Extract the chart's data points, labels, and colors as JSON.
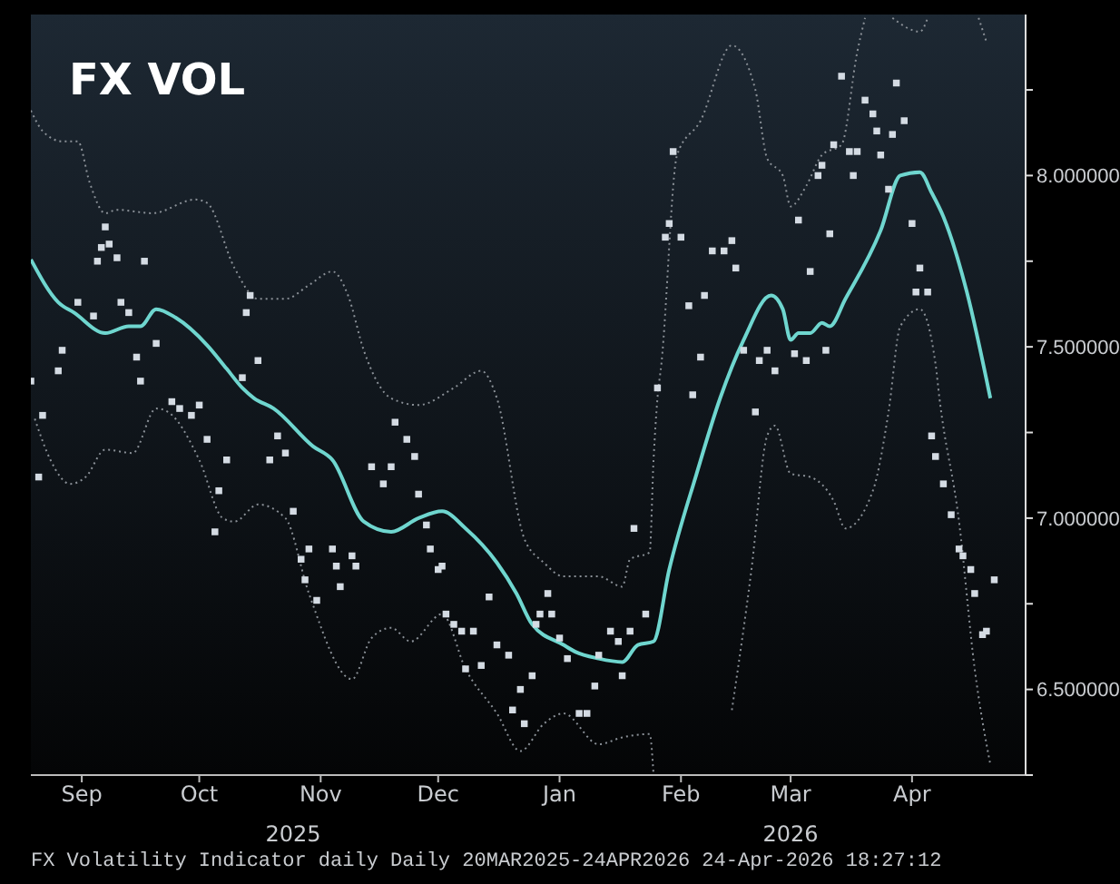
{
  "chart_data": {
    "type": "line",
    "title": "FX VOL",
    "annotations": [
      "FX Volatility Indicator daily Daily 20MAR2025-24APR2026 24-Apr-2026 18:27:12"
    ],
    "xlim": [
      "2025-08-19",
      "2026-04-30"
    ],
    "xticks": [
      {
        "value": "2025-09-01",
        "label": "Sep"
      },
      {
        "value": "2025-10-01",
        "label": "Oct"
      },
      {
        "value": "2025-11-01",
        "label": "Nov"
      },
      {
        "value": "2025-12-01",
        "label": "Dec"
      },
      {
        "value": "2026-01-01",
        "label": "Jan"
      },
      {
        "value": "2026-02-01",
        "label": "Feb"
      },
      {
        "value": "2026-03-01",
        "label": "Mar"
      },
      {
        "value": "2026-04-01",
        "label": "Apr"
      }
    ],
    "x2lim": [
      "2025-08-19",
      "2026-04-30"
    ],
    "x2ticks": [
      {
        "value": "2025-10-25",
        "label": "2025"
      },
      {
        "value": "2026-03-01",
        "label": "2026"
      }
    ],
    "ylim": [
      6.25,
      8.47
    ],
    "yticks": [
      {
        "value": 6.25,
        "label": null
      },
      {
        "value": 6.5,
        "label": "6.500000"
      },
      {
        "value": 6.75,
        "label": null
      },
      {
        "value": 7,
        "label": "7.000000"
      },
      {
        "value": 7.25,
        "label": null
      },
      {
        "value": 7.5,
        "label": "7.500000"
      },
      {
        "value": 7.75,
        "label": null
      },
      {
        "value": 8,
        "label": "8.000000"
      },
      {
        "value": 8.25,
        "label": null
      }
    ],
    "series": [
      {
        "color": "#8a9097",
        "line_style": "dotted",
        "x": [
          "2025-08-19",
          "2025-08-22",
          "2025-08-27",
          "2025-08-31",
          "2025-09-03",
          "2025-09-07",
          "2025-09-10",
          "2025-09-19",
          "2025-09-30",
          "2025-10-03",
          "2025-10-10",
          "2025-10-16",
          "2025-10-23",
          "2025-10-29",
          "2025-11-04",
          "2025-11-08",
          "2025-11-12",
          "2025-11-19",
          "2025-11-26",
          "2025-12-05",
          "2025-12-12",
          "2025-12-16",
          "2025-12-23",
          "2025-12-28",
          "2026-01-02",
          "2026-01-11",
          "2026-01-17",
          "2026-01-19",
          "2026-01-24",
          "2026-01-25",
          "2026-01-26",
          "2026-01-27",
          "2026-01-31",
          "2026-02-06",
          "2026-02-14",
          "2026-02-20",
          "2026-02-23",
          "2026-02-27",
          "2026-03-01",
          "2026-03-05",
          "2026-03-09",
          "2026-03-14",
          "2026-03-18",
          "2026-03-20",
          "2026-03-25",
          "2026-03-27",
          "2026-04-03",
          "2026-04-05",
          "2026-04-12",
          "2026-04-18",
          "2026-04-20"
        ],
        "values": [
          8.19,
          8.13,
          8.1,
          8.1,
          7.98,
          7.89,
          7.9,
          7.89,
          7.93,
          7.92,
          7.73,
          7.64,
          7.64,
          7.68,
          7.72,
          7.65,
          7.49,
          7.35,
          7.33,
          7.38,
          7.43,
          7.35,
          6.94,
          6.87,
          6.83,
          6.83,
          6.8,
          6.88,
          6.9,
          7.17,
          7.35,
          7.45,
          8.06,
          8.16,
          8.38,
          8.25,
          8.05,
          8.0,
          7.91,
          7.97,
          8.06,
          8.09,
          8.36,
          8.46,
          null,
          8.46,
          8.42,
          8.46,
          null,
          8.46,
          8.39
        ]
      },
      {
        "color": "#8a9097",
        "line_style": "dotted",
        "x": [
          "2025-08-20",
          "2025-08-24",
          "2025-08-29",
          "2025-09-02",
          "2025-09-07",
          "2025-09-14",
          "2025-09-20",
          "2025-09-23",
          "2025-10-01",
          "2025-10-07",
          "2025-10-10",
          "2025-10-16",
          "2025-10-23",
          "2025-10-29",
          "2025-11-09",
          "2025-11-14",
          "2025-11-19",
          "2025-11-24",
          "2025-12-02",
          "2025-12-08",
          "2025-12-16",
          "2025-12-22",
          "2025-12-28",
          "2026-01-02",
          "2026-01-11",
          "2026-01-17",
          "2026-01-24",
          "2026-01-25",
          "2026-02-01",
          "2026-02-10",
          "2026-02-14",
          "2026-02-19",
          "2026-02-23",
          "2026-02-25",
          "2026-03-01",
          "2026-03-06",
          "2026-03-12",
          "2026-03-15",
          "2026-03-22",
          "2026-03-26",
          "2026-03-29",
          "2026-04-03",
          "2026-04-07",
          "2026-04-08",
          "2026-04-13",
          "2026-04-17",
          "2026-04-21"
        ],
        "values": [
          7.29,
          7.17,
          7.1,
          7.12,
          7.2,
          7.19,
          7.32,
          7.31,
          7.17,
          7.0,
          6.99,
          7.04,
          7.0,
          6.78,
          6.53,
          6.65,
          6.68,
          6.64,
          6.72,
          6.56,
          6.43,
          6.32,
          6.4,
          6.43,
          6.34,
          6.36,
          6.37,
          6.25,
          null,
          null,
          6.44,
          6.85,
          7.24,
          7.27,
          7.13,
          7.12,
          7.05,
          6.97,
          7.08,
          7.31,
          7.56,
          7.61,
          7.45,
          7.35,
          6.99,
          6.56,
          6.28
        ]
      },
      {
        "type": "scatter",
        "color": "#d4dbe3",
        "marker": "square",
        "x": [
          "2025-08-19",
          "2025-08-21",
          "2025-08-22",
          "2025-08-26",
          "2025-08-27",
          "2025-08-31",
          "2025-09-04",
          "2025-09-05",
          "2025-09-06",
          "2025-09-07",
          "2025-09-08",
          "2025-09-10",
          "2025-09-11",
          "2025-09-13",
          "2025-09-15",
          "2025-09-16",
          "2025-09-17",
          "2025-09-20",
          "2025-09-24",
          "2025-09-26",
          "2025-09-29",
          "2025-10-01",
          "2025-10-03",
          "2025-10-05",
          "2025-10-06",
          "2025-10-08",
          "2025-10-12",
          "2025-10-13",
          "2025-10-14",
          "2025-10-16",
          "2025-10-19",
          "2025-10-21",
          "2025-10-23",
          "2025-10-25",
          "2025-10-27",
          "2025-10-28",
          "2025-10-29",
          "2025-10-31",
          "2025-11-04",
          "2025-11-05",
          "2025-11-06",
          "2025-11-09",
          "2025-11-10",
          "2025-11-14",
          "2025-11-17",
          "2025-11-19",
          "2025-11-20",
          "2025-11-23",
          "2025-11-25",
          "2025-11-26",
          "2025-11-28",
          "2025-11-29",
          "2025-12-01",
          "2025-12-02",
          "2025-12-03",
          "2025-12-05",
          "2025-12-07",
          "2025-12-08",
          "2025-12-10",
          "2025-12-12",
          "2025-12-14",
          "2025-12-16",
          "2025-12-19",
          "2025-12-20",
          "2025-12-22",
          "2025-12-23",
          "2025-12-25",
          "2025-12-26",
          "2025-12-27",
          "2025-12-29",
          "2025-12-30",
          "2026-01-01",
          "2026-01-03",
          "2026-01-06",
          "2026-01-08",
          "2026-01-10",
          "2026-01-11",
          "2026-01-14",
          "2026-01-16",
          "2026-01-17",
          "2026-01-19",
          "2026-01-20",
          "2026-01-23",
          "2026-01-26",
          "2026-01-28",
          "2026-01-29",
          "2026-01-30",
          "2026-02-01",
          "2026-02-03",
          "2026-02-04",
          "2026-02-06",
          "2026-02-07",
          "2026-02-09",
          "2026-02-12",
          "2026-02-14",
          "2026-02-15",
          "2026-02-17",
          "2026-02-20",
          "2026-02-21",
          "2026-02-23",
          "2026-02-25",
          "2026-03-02",
          "2026-03-03",
          "2026-03-05",
          "2026-03-06",
          "2026-03-08",
          "2026-03-09",
          "2026-03-10",
          "2026-03-11",
          "2026-03-12",
          "2026-03-14",
          "2026-03-16",
          "2026-03-17",
          "2026-03-18",
          "2026-03-20",
          "2026-03-22",
          "2026-03-23",
          "2026-03-24",
          "2026-03-26",
          "2026-03-27",
          "2026-03-28",
          "2026-03-30",
          "2026-04-01",
          "2026-04-02",
          "2026-04-03",
          "2026-04-05",
          "2026-04-06",
          "2026-04-07",
          "2026-04-09",
          "2026-04-11",
          "2026-04-13",
          "2026-04-14",
          "2026-04-16",
          "2026-04-17",
          "2026-04-19",
          "2026-04-20",
          "2026-04-22"
        ],
        "values": [
          7.4,
          7.12,
          7.3,
          7.43,
          7.49,
          7.63,
          7.59,
          7.75,
          7.79,
          7.85,
          7.8,
          7.76,
          7.63,
          7.6,
          7.47,
          7.4,
          7.75,
          7.51,
          7.34,
          7.32,
          7.3,
          7.33,
          7.23,
          6.96,
          7.08,
          7.17,
          7.41,
          7.6,
          7.65,
          7.46,
          7.17,
          7.24,
          7.19,
          7.02,
          6.88,
          6.82,
          6.91,
          6.76,
          6.91,
          6.86,
          6.8,
          6.89,
          6.86,
          7.15,
          7.1,
          7.15,
          7.28,
          7.23,
          7.18,
          7.07,
          6.98,
          6.91,
          6.85,
          6.86,
          6.72,
          6.69,
          6.67,
          6.56,
          6.67,
          6.57,
          6.77,
          6.63,
          6.6,
          6.44,
          6.5,
          6.4,
          6.54,
          6.69,
          6.72,
          6.78,
          6.72,
          6.65,
          6.59,
          6.43,
          6.43,
          6.51,
          6.6,
          6.67,
          6.64,
          6.54,
          6.67,
          6.97,
          6.72,
          7.38,
          7.82,
          7.86,
          8.07,
          7.82,
          7.62,
          7.36,
          7.47,
          7.65,
          7.78,
          7.78,
          7.81,
          7.73,
          7.49,
          7.31,
          7.46,
          7.49,
          7.43,
          7.48,
          7.87,
          7.46,
          7.72,
          8.0,
          8.03,
          7.49,
          7.83,
          8.09,
          8.29,
          8.07,
          8.0,
          8.07,
          8.22,
          8.18,
          8.13,
          8.06,
          7.96,
          8.12,
          8.27,
          8.16,
          7.86,
          7.66,
          7.73,
          7.66,
          7.24,
          7.18,
          7.1,
          7.01,
          6.91,
          6.89,
          6.85,
          6.78,
          6.66,
          6.67,
          6.82
        ]
      },
      {
        "color": "#6fd6cf",
        "line_style": "solid",
        "x": [
          "2025-08-19",
          "2025-08-26",
          "2025-08-30",
          "2025-09-07",
          "2025-09-13",
          "2025-09-16",
          "2025-09-20",
          "2025-09-25",
          "2025-10-03",
          "2025-10-08",
          "2025-10-12",
          "2025-10-15",
          "2025-10-20",
          "2025-10-30",
          "2025-11-04",
          "2025-11-12",
          "2025-11-19",
          "2025-11-26",
          "2025-12-02",
          "2025-12-08",
          "2025-12-16",
          "2025-12-21",
          "2025-12-25",
          "2026-01-02",
          "2026-01-05",
          "2026-01-11",
          "2026-01-17",
          "2026-01-21",
          "2026-01-25",
          "2026-01-29",
          "2026-02-05",
          "2026-02-11",
          "2026-02-17",
          "2026-02-24",
          "2026-02-27",
          "2026-03-01",
          "2026-03-03",
          "2026-03-06",
          "2026-03-09",
          "2026-03-11",
          "2026-03-15",
          "2026-03-24",
          "2026-03-29",
          "2026-04-03",
          "2026-04-06",
          "2026-04-09",
          "2026-04-15",
          "2026-04-21"
        ],
        "values": [
          7.755,
          7.63,
          7.6,
          7.54,
          7.56,
          7.56,
          7.61,
          7.585,
          7.505,
          7.436,
          7.38,
          7.35,
          7.32,
          7.21,
          7.17,
          6.99,
          6.96,
          7.0,
          7.02,
          6.97,
          6.87,
          6.78,
          6.69,
          6.63,
          6.61,
          6.59,
          6.58,
          6.63,
          6.64,
          6.85,
          7.13,
          7.35,
          7.52,
          7.65,
          7.61,
          7.52,
          7.54,
          7.54,
          7.57,
          7.56,
          7.64,
          7.84,
          8.0,
          8.01,
          7.95,
          7.88,
          7.66,
          7.35
        ]
      }
    ]
  }
}
